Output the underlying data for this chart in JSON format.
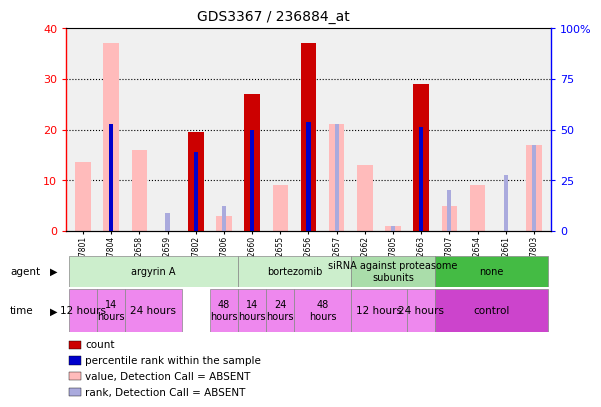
{
  "title": "GDS3367 / 236884_at",
  "samples": [
    "GSM297801",
    "GSM297804",
    "GSM212658",
    "GSM212659",
    "GSM297802",
    "GSM297806",
    "GSM212660",
    "GSM212655",
    "GSM212656",
    "GSM212657",
    "GSM212662",
    "GSM297805",
    "GSM212663",
    "GSM297807",
    "GSM212654",
    "GSM212661",
    "GSM297803"
  ],
  "count_present": [
    0,
    0,
    0,
    0,
    19.5,
    0,
    27,
    0,
    37,
    0,
    0,
    0,
    29,
    0,
    0,
    0,
    0
  ],
  "count_absent": [
    13.5,
    37,
    16,
    0,
    0,
    3,
    0,
    9,
    0,
    21,
    13,
    1,
    0,
    5,
    9,
    0,
    17
  ],
  "pct_present": [
    0,
    21,
    0,
    0,
    15.5,
    0,
    20,
    0,
    21.5,
    0,
    0,
    0,
    20.5,
    0,
    0,
    0,
    0
  ],
  "pct_absent": [
    0,
    0,
    0,
    3.5,
    0,
    5,
    0,
    0,
    0,
    0,
    0,
    1,
    0,
    8,
    0,
    0,
    0
  ],
  "rank_absent": [
    0,
    0,
    0,
    0,
    0,
    0,
    0,
    0,
    0,
    21,
    0,
    0,
    0,
    0,
    0,
    11,
    17
  ],
  "agents": [
    {
      "label": "argyrin A",
      "start": 0,
      "end": 6,
      "color": "#cceecc"
    },
    {
      "label": "bortezomib",
      "start": 6,
      "end": 10,
      "color": "#cceecc"
    },
    {
      "label": "siRNA against proteasome\nsubunits",
      "start": 10,
      "end": 13,
      "color": "#aaddaa"
    },
    {
      "label": "none",
      "start": 13,
      "end": 17,
      "color": "#44bb44"
    }
  ],
  "time_segments": [
    {
      "label": "12 hours",
      "start": 0,
      "end": 1,
      "color": "#ee88ee"
    },
    {
      "label": "14\nhours",
      "start": 1,
      "end": 2,
      "color": "#ee88ee"
    },
    {
      "label": "24 hours",
      "start": 2,
      "end": 4,
      "color": "#ee88ee"
    },
    {
      "label": "48\nhours",
      "start": 5,
      "end": 6,
      "color": "#ee88ee"
    },
    {
      "label": "14\nhours",
      "start": 6,
      "end": 7,
      "color": "#ee88ee"
    },
    {
      "label": "24\nhours",
      "start": 7,
      "end": 8,
      "color": "#ee88ee"
    },
    {
      "label": "48\nhours",
      "start": 8,
      "end": 10,
      "color": "#ee88ee"
    },
    {
      "label": "12 hours",
      "start": 10,
      "end": 12,
      "color": "#ee88ee"
    },
    {
      "label": "24 hours",
      "start": 12,
      "end": 13,
      "color": "#ee88ee"
    },
    {
      "label": "control",
      "start": 13,
      "end": 17,
      "color": "#cc44cc"
    }
  ],
  "ylim": [
    0,
    40
  ],
  "yticks_left": [
    0,
    10,
    20,
    30,
    40
  ],
  "ytick_labels_right": [
    "0",
    "25",
    "50",
    "75",
    "100%"
  ],
  "color_count_present": "#cc0000",
  "color_count_absent": "#ffbbbb",
  "color_pct_present": "#0000cc",
  "color_pct_absent": "#aaaadd",
  "color_rank_absent": "#aaaadd",
  "plot_bg": "#f0f0f0",
  "legend_items": [
    {
      "color": "#cc0000",
      "label": "count"
    },
    {
      "color": "#0000cc",
      "label": "percentile rank within the sample"
    },
    {
      "color": "#ffbbbb",
      "label": "value, Detection Call = ABSENT"
    },
    {
      "color": "#aaaadd",
      "label": "rank, Detection Call = ABSENT"
    }
  ]
}
